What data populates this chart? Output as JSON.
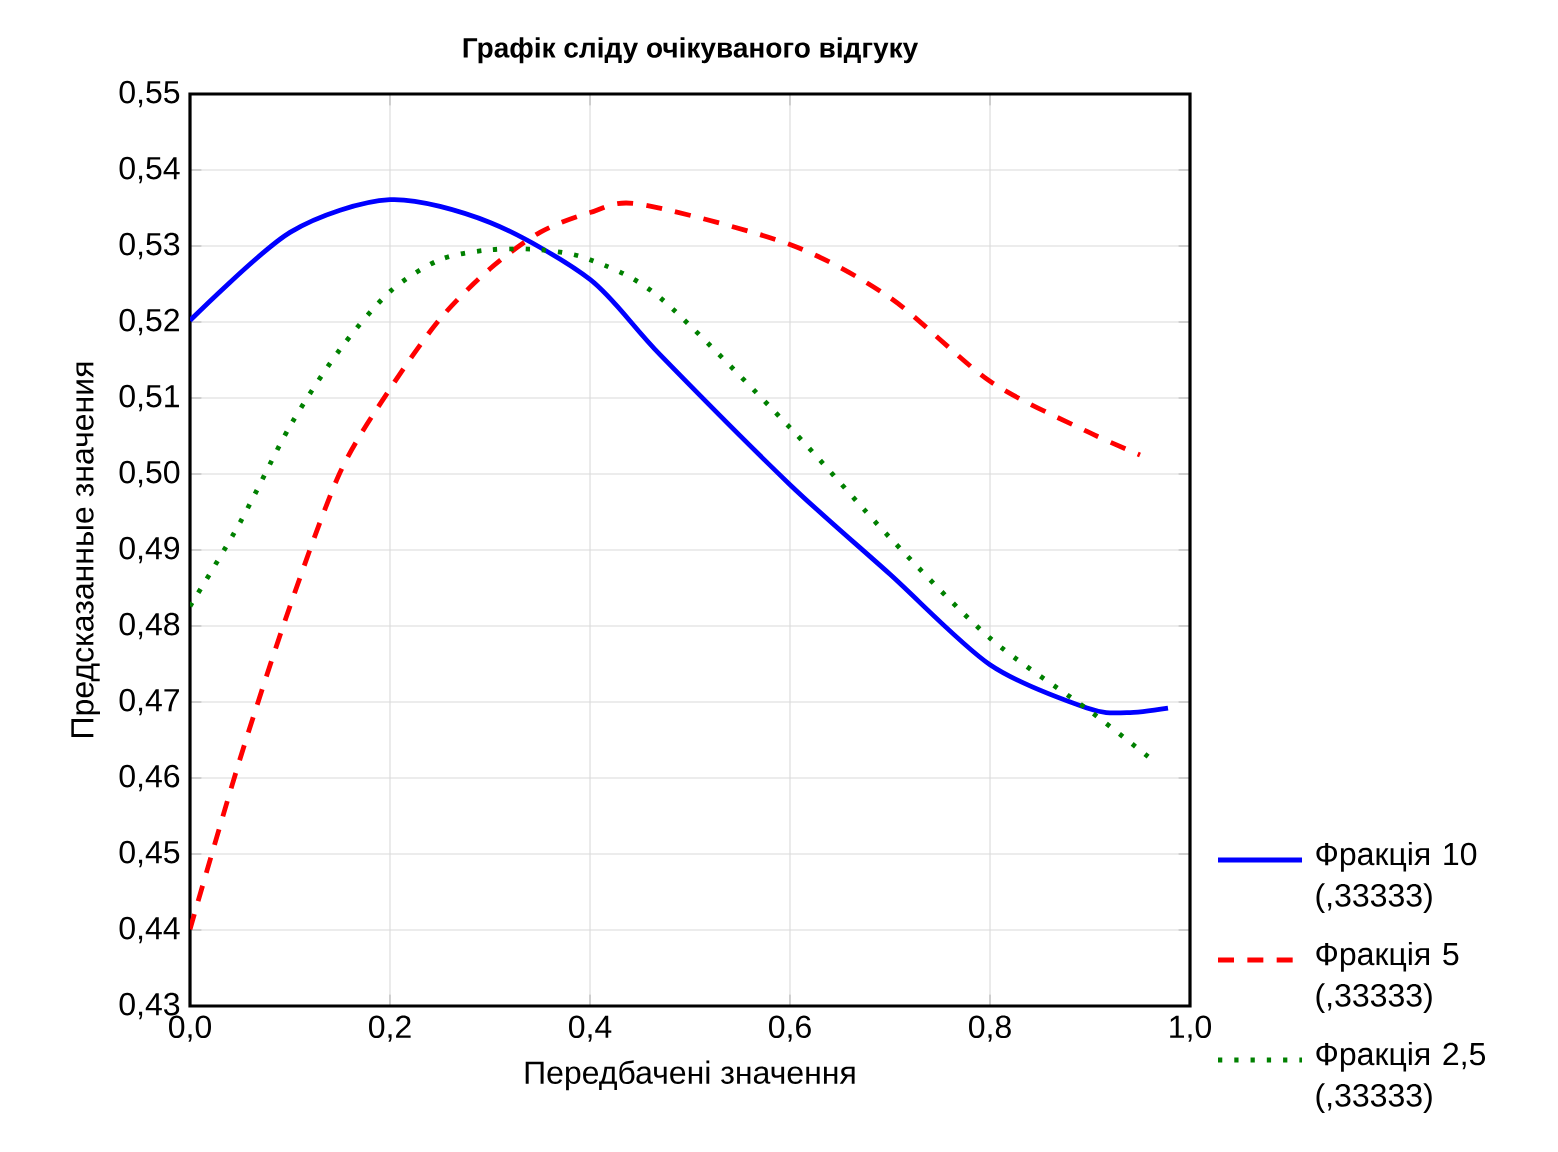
{
  "chart_data": {
    "type": "line",
    "title": "Графік сліду очікуваного відгуку",
    "xlabel": "Передбачені значення",
    "ylabel": "Предсказанные значения",
    "xlim": [
      0,
      1
    ],
    "ylim": [
      0.43,
      0.55
    ],
    "xticks": [
      {
        "value": 0,
        "label": "0,0"
      },
      {
        "value": 0.2,
        "label": "0,2"
      },
      {
        "value": 0.4,
        "label": "0,4"
      },
      {
        "value": 0.6,
        "label": "0,6"
      },
      {
        "value": 0.8,
        "label": "0,8"
      },
      {
        "value": 1,
        "label": "1,0"
      }
    ],
    "yticks": [
      {
        "value": 0.43,
        "label": "0,43"
      },
      {
        "value": 0.44,
        "label": "0,44"
      },
      {
        "value": 0.45,
        "label": "0,45"
      },
      {
        "value": 0.46,
        "label": "0,46"
      },
      {
        "value": 0.47,
        "label": "0,47"
      },
      {
        "value": 0.48,
        "label": "0,48"
      },
      {
        "value": 0.49,
        "label": "0,49"
      },
      {
        "value": 0.5,
        "label": "0,50"
      },
      {
        "value": 0.51,
        "label": "0,51"
      },
      {
        "value": 0.52,
        "label": "0,52"
      },
      {
        "value": 0.53,
        "label": "0,53"
      },
      {
        "value": 0.54,
        "label": "0,54"
      },
      {
        "value": 0.55,
        "label": "0,55"
      }
    ],
    "grid": true,
    "legend": "bottom right",
    "marker": "none",
    "series": [
      {
        "name": "Фракція 10 (,33333)",
        "color": "#0000ff",
        "line_style": "solid",
        "x": [
          0,
          0.1,
          0.2,
          0.3,
          0.4,
          0.47,
          0.6,
          0.7,
          0.8,
          0.897,
          0.937,
          0.978
        ],
        "values": [
          0.5202,
          0.5318,
          0.5361,
          0.5331,
          0.5256,
          0.5157,
          0.4986,
          0.4868,
          0.4749,
          0.4692,
          0.4686,
          0.4692
        ]
      },
      {
        "name": "Фракція 5 (,33333)",
        "color": "#ff0000",
        "line_style": "dashed",
        "x": [
          0,
          0.05,
          0.1,
          0.15,
          0.2,
          0.25,
          0.3,
          0.35,
          0.4,
          0.45,
          0.6,
          0.7,
          0.8,
          0.897,
          0.95
        ],
        "values": [
          0.4401,
          0.4625,
          0.4826,
          0.5002,
          0.5112,
          0.5204,
          0.527,
          0.5318,
          0.5344,
          0.5355,
          0.5302,
          0.5232,
          0.5122,
          0.5056,
          0.5025
        ]
      },
      {
        "name": "Фракція 2,5 (,33333)",
        "color": "#008000",
        "line_style": "dotted",
        "x": [
          0,
          0.05,
          0.1,
          0.15,
          0.2,
          0.25,
          0.3,
          0.35,
          0.4,
          0.47,
          0.6,
          0.7,
          0.8,
          0.9,
          0.96
        ],
        "values": [
          0.4826,
          0.4936,
          0.5063,
          0.5164,
          0.524,
          0.5282,
          0.5295,
          0.5295,
          0.5282,
          0.5232,
          0.5061,
          0.4916,
          0.4784,
          0.4688,
          0.4626
        ]
      }
    ]
  }
}
